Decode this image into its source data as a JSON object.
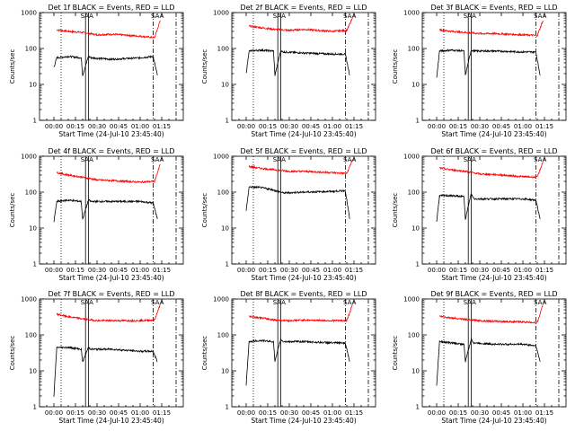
{
  "chart_data": [
    {
      "type": "line",
      "title": "Det 1f BLACK = Events, RED = LLD",
      "xlabel": "Start Time (24-Jul-10 23:45:40)",
      "ylabel": "Counts/sec",
      "yscale": "log",
      "ylim": [
        1,
        1000
      ],
      "xlim_min": [
        -15,
        90
      ],
      "x_ticks": [
        "00:00",
        "00:15",
        "00:30",
        "00:45",
        "01:00",
        "01:15"
      ],
      "y_ticks": [
        "1",
        "10",
        "100",
        "1000"
      ],
      "series": [
        {
          "color": "#ff0000",
          "values": [
            [
              2,
              330
            ],
            [
              10,
              300
            ],
            [
              20,
              280
            ],
            [
              30,
              240
            ],
            [
              40,
              250
            ],
            [
              60,
              220
            ],
            [
              70,
              200
            ],
            [
              74,
              600
            ]
          ]
        },
        {
          "color": "#000000",
          "values": [
            [
              0,
              30
            ],
            [
              2,
              55
            ],
            [
              10,
              60
            ],
            [
              19,
              55
            ],
            [
              20,
              18
            ],
            [
              24,
              60
            ],
            [
              26,
              55
            ],
            [
              40,
              50
            ],
            [
              60,
              55
            ],
            [
              69,
              60
            ],
            [
              72,
              18
            ]
          ]
        }
      ],
      "markers": [
        "SAA",
        "SAA"
      ]
    },
    {
      "type": "line",
      "title": "Det 2f BLACK = Events, RED = LLD",
      "xlabel": "Start Time (24-Jul-10 23:45:40)",
      "ylabel": "Counts/sec",
      "yscale": "log",
      "ylim": [
        1,
        1000
      ],
      "xlim_min": [
        -15,
        90
      ],
      "x_ticks": [
        "00:00",
        "00:15",
        "00:30",
        "00:45",
        "01:00",
        "01:15"
      ],
      "y_ticks": [
        "1",
        "10",
        "100",
        "1000"
      ],
      "series": [
        {
          "color": "#ff0000",
          "values": [
            [
              2,
              420
            ],
            [
              10,
              380
            ],
            [
              20,
              340
            ],
            [
              30,
              320
            ],
            [
              40,
              340
            ],
            [
              60,
              300
            ],
            [
              70,
              320
            ],
            [
              74,
              700
            ]
          ]
        },
        {
          "color": "#000000",
          "values": [
            [
              0,
              20
            ],
            [
              2,
              85
            ],
            [
              10,
              90
            ],
            [
              19,
              85
            ],
            [
              20,
              18
            ],
            [
              24,
              85
            ],
            [
              26,
              80
            ],
            [
              40,
              75
            ],
            [
              60,
              70
            ],
            [
              69,
              70
            ],
            [
              72,
              18
            ]
          ]
        }
      ],
      "markers": [
        "SAA",
        "SAA"
      ]
    },
    {
      "type": "line",
      "title": "Det 3f BLACK = Events, RED = LLD",
      "xlabel": "Start Time (24-Jul-10 23:45:40)",
      "ylabel": "Counts/sec",
      "yscale": "log",
      "ylim": [
        1,
        1000
      ],
      "xlim_min": [
        -15,
        90
      ],
      "x_ticks": [
        "00:00",
        "00:15",
        "00:30",
        "00:45",
        "01:00",
        "01:15"
      ],
      "y_ticks": [
        "1",
        "10",
        "100",
        "1000"
      ],
      "series": [
        {
          "color": "#ff0000",
          "values": [
            [
              2,
              330
            ],
            [
              10,
              300
            ],
            [
              20,
              280
            ],
            [
              30,
              260
            ],
            [
              40,
              260
            ],
            [
              60,
              240
            ],
            [
              70,
              230
            ],
            [
              74,
              600
            ]
          ]
        },
        {
          "color": "#000000",
          "values": [
            [
              0,
              15
            ],
            [
              2,
              85
            ],
            [
              10,
              90
            ],
            [
              19,
              85
            ],
            [
              20,
              18
            ],
            [
              24,
              90
            ],
            [
              26,
              85
            ],
            [
              40,
              85
            ],
            [
              60,
              80
            ],
            [
              69,
              80
            ],
            [
              72,
              18
            ]
          ]
        }
      ],
      "markers": [
        "SAA",
        "SAA"
      ]
    },
    {
      "type": "line",
      "title": "Det 4f BLACK = Events, RED = LLD",
      "xlabel": "Start Time (24-Jul-10 23:45:40)",
      "ylabel": "Counts/sec",
      "yscale": "log",
      "ylim": [
        1,
        1000
      ],
      "xlim_min": [
        -15,
        90
      ],
      "x_ticks": [
        "00:00",
        "00:15",
        "00:30",
        "00:45",
        "01:00",
        "01:15"
      ],
      "y_ticks": [
        "1",
        "10",
        "100",
        "1000"
      ],
      "series": [
        {
          "color": "#ff0000",
          "values": [
            [
              2,
              350
            ],
            [
              10,
              300
            ],
            [
              20,
              260
            ],
            [
              30,
              220
            ],
            [
              40,
              210
            ],
            [
              60,
              190
            ],
            [
              70,
              200
            ],
            [
              74,
              600
            ]
          ]
        },
        {
          "color": "#000000",
          "values": [
            [
              0,
              15
            ],
            [
              2,
              55
            ],
            [
              10,
              60
            ],
            [
              19,
              55
            ],
            [
              20,
              18
            ],
            [
              24,
              60
            ],
            [
              26,
              55
            ],
            [
              40,
              55
            ],
            [
              60,
              55
            ],
            [
              69,
              50
            ],
            [
              72,
              18
            ]
          ]
        }
      ],
      "markers": [
        "SAA",
        "SAA"
      ]
    },
    {
      "type": "line",
      "title": "Det 5f BLACK = Events, RED = LLD",
      "xlabel": "Start Time (24-Jul-10 23:45:40)",
      "ylabel": "Counts/sec",
      "yscale": "log",
      "ylim": [
        1,
        1000
      ],
      "xlim_min": [
        -15,
        90
      ],
      "x_ticks": [
        "00:00",
        "00:15",
        "00:30",
        "00:45",
        "01:00",
        "01:15"
      ],
      "y_ticks": [
        "1",
        "10",
        "100",
        "1000"
      ],
      "series": [
        {
          "color": "#ff0000",
          "values": [
            [
              2,
              520
            ],
            [
              10,
              460
            ],
            [
              20,
              420
            ],
            [
              30,
              380
            ],
            [
              40,
              380
            ],
            [
              60,
              350
            ],
            [
              70,
              330
            ],
            [
              74,
              800
            ]
          ]
        },
        {
          "color": "#000000",
          "values": [
            [
              0,
              30
            ],
            [
              2,
              140
            ],
            [
              10,
              135
            ],
            [
              19,
              115
            ],
            [
              20,
              110
            ],
            [
              24,
              100
            ],
            [
              26,
              95
            ],
            [
              40,
              100
            ],
            [
              60,
              105
            ],
            [
              69,
              110
            ],
            [
              72,
              18
            ]
          ]
        }
      ],
      "markers": [
        "SAA",
        "SAA"
      ]
    },
    {
      "type": "line",
      "title": "Det 6f BLACK = Events, RED = LLD",
      "xlabel": "Start Time (24-Jul-10 23:45:40)",
      "ylabel": "Counts/sec",
      "yscale": "log",
      "ylim": [
        1,
        1000
      ],
      "xlim_min": [
        -15,
        90
      ],
      "x_ticks": [
        "00:00",
        "00:15",
        "00:30",
        "00:45",
        "01:00",
        "01:15"
      ],
      "y_ticks": [
        "1",
        "10",
        "100",
        "1000"
      ],
      "series": [
        {
          "color": "#ff0000",
          "values": [
            [
              2,
              470
            ],
            [
              10,
              420
            ],
            [
              20,
              380
            ],
            [
              30,
              320
            ],
            [
              40,
              310
            ],
            [
              60,
              270
            ],
            [
              70,
              260
            ],
            [
              74,
              700
            ]
          ]
        },
        {
          "color": "#000000",
          "values": [
            [
              0,
              15
            ],
            [
              2,
              80
            ],
            [
              10,
              80
            ],
            [
              19,
              75
            ],
            [
              20,
              18
            ],
            [
              24,
              90
            ],
            [
              26,
              65
            ],
            [
              40,
              65
            ],
            [
              60,
              65
            ],
            [
              69,
              60
            ],
            [
              72,
              18
            ]
          ]
        }
      ],
      "markers": [
        "SAA",
        "SAA"
      ]
    },
    {
      "type": "line",
      "title": "Det 7f BLACK = Events, RED = LLD",
      "xlabel": "Start Time (24-Jul-10 23:45:40)",
      "ylabel": "Counts/sec",
      "yscale": "log",
      "ylim": [
        1,
        1000
      ],
      "xlim_min": [
        -15,
        90
      ],
      "x_ticks": [
        "00:00",
        "00:15",
        "00:30",
        "00:45",
        "01:00",
        "01:15"
      ],
      "y_ticks": [
        "1",
        "10",
        "100",
        "1000"
      ],
      "series": [
        {
          "color": "#ff0000",
          "values": [
            [
              2,
              380
            ],
            [
              10,
              320
            ],
            [
              20,
              280
            ],
            [
              30,
              250
            ],
            [
              40,
              250
            ],
            [
              60,
              250
            ],
            [
              70,
              260
            ],
            [
              74,
              700
            ]
          ]
        },
        {
          "color": "#000000",
          "values": [
            [
              0,
              2
            ],
            [
              2,
              45
            ],
            [
              10,
              45
            ],
            [
              19,
              40
            ],
            [
              20,
              18
            ],
            [
              24,
              45
            ],
            [
              26,
              40
            ],
            [
              40,
              40
            ],
            [
              60,
              35
            ],
            [
              69,
              35
            ],
            [
              72,
              18
            ]
          ]
        }
      ],
      "markers": [
        "SAA",
        "SAA"
      ]
    },
    {
      "type": "line",
      "title": "Det 8f BLACK = Events, RED = LLD",
      "xlabel": "Start Time (24-Jul-10 23:45:40)",
      "ylabel": "Counts/sec",
      "yscale": "log",
      "ylim": [
        1,
        1000
      ],
      "xlim_min": [
        -15,
        90
      ],
      "x_ticks": [
        "00:00",
        "00:15",
        "00:30",
        "00:45",
        "01:00",
        "01:15"
      ],
      "y_ticks": [
        "1",
        "10",
        "100",
        "1000"
      ],
      "series": [
        {
          "color": "#ff0000",
          "values": [
            [
              2,
              330
            ],
            [
              10,
              300
            ],
            [
              20,
              260
            ],
            [
              30,
              250
            ],
            [
              40,
              260
            ],
            [
              60,
              250
            ],
            [
              70,
              250
            ],
            [
              74,
              700
            ]
          ]
        },
        {
          "color": "#000000",
          "values": [
            [
              0,
              4
            ],
            [
              2,
              65
            ],
            [
              10,
              70
            ],
            [
              19,
              65
            ],
            [
              20,
              18
            ],
            [
              24,
              75
            ],
            [
              26,
              65
            ],
            [
              40,
              65
            ],
            [
              60,
              60
            ],
            [
              69,
              60
            ],
            [
              72,
              18
            ]
          ]
        }
      ],
      "markers": [
        "SAA",
        "SAA"
      ]
    },
    {
      "type": "line",
      "title": "Det 9f BLACK = Events, RED = LLD",
      "xlabel": "Start Time (24-Jul-10 23:45:40)",
      "ylabel": "Counts/sec",
      "yscale": "log",
      "ylim": [
        1,
        1000
      ],
      "xlim_min": [
        -15,
        90
      ],
      "x_ticks": [
        "00:00",
        "00:15",
        "00:30",
        "00:45",
        "01:00",
        "01:15"
      ],
      "y_ticks": [
        "1",
        "10",
        "100",
        "1000"
      ],
      "series": [
        {
          "color": "#ff0000",
          "values": [
            [
              2,
              330
            ],
            [
              10,
              300
            ],
            [
              20,
              270
            ],
            [
              30,
              250
            ],
            [
              40,
              240
            ],
            [
              60,
              230
            ],
            [
              70,
              220
            ],
            [
              74,
              700
            ]
          ]
        },
        {
          "color": "#000000",
          "values": [
            [
              0,
              4
            ],
            [
              2,
              65
            ],
            [
              10,
              60
            ],
            [
              19,
              55
            ],
            [
              20,
              18
            ],
            [
              24,
              75
            ],
            [
              26,
              60
            ],
            [
              40,
              55
            ],
            [
              60,
              55
            ],
            [
              69,
              50
            ],
            [
              72,
              18
            ]
          ]
        }
      ],
      "markers": [
        "SAA",
        "SAA"
      ]
    }
  ]
}
